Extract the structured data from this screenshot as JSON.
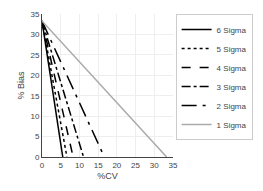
{
  "chart_data": {
    "type": "line",
    "xlabel": "%CV",
    "ylabel": "% Bias",
    "xlim": [
      0,
      35
    ],
    "ylim": [
      0,
      35
    ],
    "xticks": [
      0,
      5,
      10,
      15,
      20,
      25,
      30,
      35
    ],
    "yticks": [
      0,
      5,
      10,
      15,
      20,
      25,
      30,
      35
    ],
    "grid": true,
    "legend": "upper right",
    "series": [
      {
        "name": "6 Sigma",
        "color": "#000000",
        "line_style": "solid",
        "x": [
          0,
          5.55
        ],
        "values": [
          33.3,
          0
        ]
      },
      {
        "name": "5 Sigma",
        "color": "#000000",
        "line_style": "dot",
        "x": [
          0,
          6.66
        ],
        "values": [
          33.3,
          0
        ]
      },
      {
        "name": "4 Sigma",
        "color": "#000000",
        "line_style": "dash",
        "x": [
          0,
          8.325
        ],
        "values": [
          33.3,
          0
        ]
      },
      {
        "name": "3 Sigma",
        "color": "#000000",
        "line_style": "dashdot",
        "x": [
          0,
          11.1
        ],
        "values": [
          33.3,
          0
        ]
      },
      {
        "name": "2 Sigma",
        "color": "#000000",
        "line_style": "longdashdot",
        "x": [
          0,
          16.65
        ],
        "values": [
          33.3,
          0
        ]
      },
      {
        "name": "1 Sigma",
        "color": "#aaaaaa",
        "line_style": "solid",
        "x": [
          0,
          33.3
        ],
        "values": [
          33.3,
          0
        ]
      }
    ]
  }
}
